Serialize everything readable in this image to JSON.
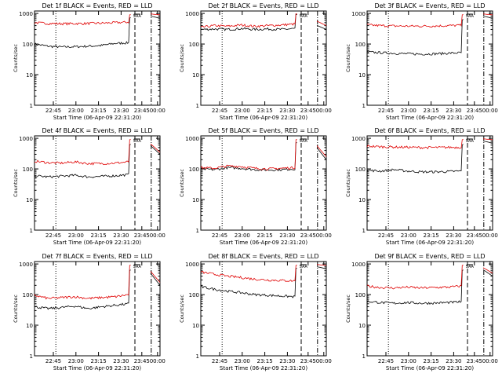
{
  "figure": {
    "colors": {
      "events": "#000000",
      "lld": "#e00000",
      "axes": "#000000",
      "background": "#ffffff"
    },
    "common": {
      "xlabel": "Start Time (06-Apr-09 22:31:20)",
      "ylabel": "Counts/sec",
      "xticks": [
        "22:45",
        "23:00",
        "23:15",
        "23:30",
        "23:45",
        "00:00"
      ],
      "yticks": [
        "1",
        "10",
        "100",
        "1000"
      ],
      "ylim": [
        1,
        1200
      ],
      "y_scale": "log",
      "saa_label": "SAA"
    }
  },
  "chart_data": [
    {
      "type": "line",
      "title": "Det 1f BLACK = Events, RED = LLD",
      "series": [
        {
          "name": "Events",
          "y": [
            100,
            85,
            80,
            82,
            85,
            90,
            105,
            110,
            700,
            900,
            700
          ]
        },
        {
          "name": "LLD",
          "y": [
            500,
            470,
            460,
            465,
            470,
            480,
            500,
            520,
            900,
            1000,
            900
          ]
        }
      ]
    },
    {
      "type": "line",
      "title": "Det 2f BLACK = Events, RED = LLD",
      "series": [
        {
          "name": "Events",
          "y": [
            300,
            310,
            300,
            320,
            300,
            310,
            300,
            320,
            1000,
            500,
            300
          ]
        },
        {
          "name": "LLD",
          "y": [
            350,
            400,
            380,
            420,
            380,
            400,
            420,
            450,
            1000,
            700,
            400
          ]
        }
      ]
    },
    {
      "type": "line",
      "title": "Det 3f BLACK = Events, RED = LLD",
      "series": [
        {
          "name": "Events",
          "y": [
            55,
            52,
            50,
            48,
            47,
            48,
            50,
            52,
            600,
            900,
            700
          ]
        },
        {
          "name": "LLD",
          "y": [
            420,
            400,
            390,
            385,
            385,
            390,
            400,
            410,
            900,
            1000,
            900
          ]
        }
      ]
    },
    {
      "type": "line",
      "title": "Det 4f BLACK = Events, RED = LLD",
      "series": [
        {
          "name": "Events",
          "y": [
            60,
            55,
            58,
            62,
            55,
            57,
            60,
            65,
            600,
            900,
            300
          ]
        },
        {
          "name": "LLD",
          "y": [
            180,
            160,
            155,
            170,
            150,
            150,
            155,
            170,
            900,
            1000,
            350
          ]
        }
      ]
    },
    {
      "type": "line",
      "title": "Det 5f BLACK = Events, RED = LLD",
      "series": [
        {
          "name": "Events",
          "y": [
            100,
            95,
            110,
            105,
            95,
            92,
            95,
            100,
            700,
            900,
            200
          ]
        },
        {
          "name": "LLD",
          "y": [
            110,
            105,
            125,
            120,
            105,
            100,
            105,
            110,
            900,
            1000,
            250
          ]
        }
      ]
    },
    {
      "type": "line",
      "title": "Det 6f BLACK = Events, RED = LLD",
      "series": [
        {
          "name": "Events",
          "y": [
            90,
            85,
            95,
            85,
            80,
            80,
            82,
            85,
            600,
            900,
            700
          ]
        },
        {
          "name": "LLD",
          "y": [
            560,
            530,
            520,
            510,
            500,
            500,
            505,
            510,
            900,
            1000,
            900
          ]
        }
      ]
    },
    {
      "type": "line",
      "title": "Det 7f BLACK = Events, RED = LLD",
      "series": [
        {
          "name": "Events",
          "y": [
            40,
            35,
            38,
            42,
            35,
            40,
            45,
            50,
            600,
            900,
            200
          ]
        },
        {
          "name": "LLD",
          "y": [
            95,
            75,
            80,
            85,
            75,
            80,
            85,
            100,
            900,
            1000,
            250
          ]
        }
      ]
    },
    {
      "type": "line",
      "title": "Det 8f BLACK = Events, RED = LLD",
      "series": [
        {
          "name": "Events",
          "y": [
            180,
            150,
            130,
            115,
            100,
            95,
            90,
            85,
            700,
            900,
            700
          ]
        },
        {
          "name": "LLD",
          "y": [
            550,
            460,
            400,
            360,
            320,
            300,
            290,
            280,
            900,
            1000,
            900
          ]
        }
      ]
    },
    {
      "type": "line",
      "title": "Det 9f BLACK = Events, RED = LLD",
      "series": [
        {
          "name": "Events",
          "y": [
            60,
            55,
            52,
            55,
            52,
            53,
            55,
            58,
            600,
            900,
            400
          ]
        },
        {
          "name": "LLD",
          "y": [
            190,
            170,
            165,
            175,
            165,
            170,
            175,
            190,
            900,
            1000,
            500
          ]
        }
      ]
    }
  ]
}
